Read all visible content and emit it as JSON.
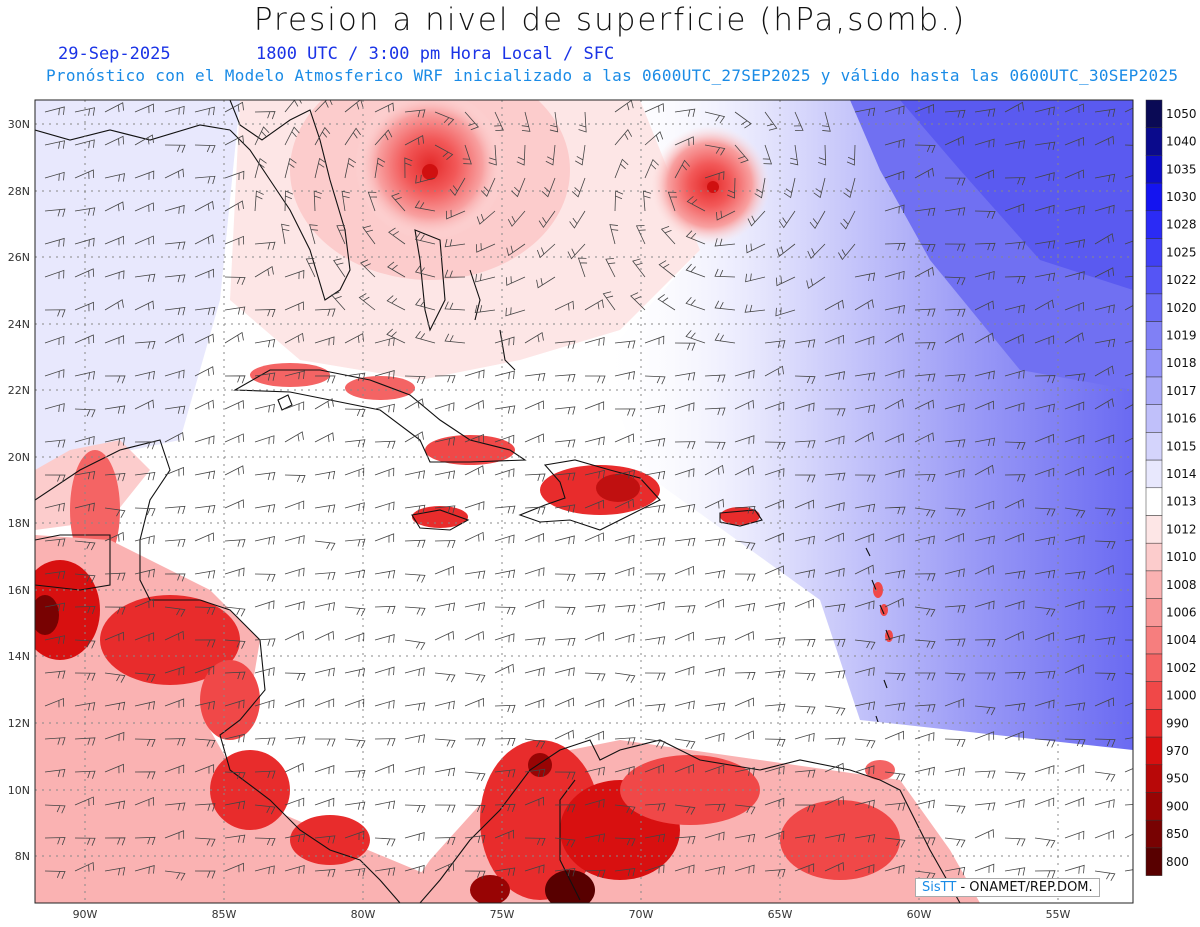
{
  "header": {
    "title": "Presion a nivel de superficie (hPa,somb.)",
    "date": "29-Sep-2025",
    "time": "1800 UTC / 3:00 pm Hora Local / SFC",
    "forecast_info": "Pronóstico con el Modelo Atmosferico WRF inicializado a las 0600UTC_27SEP2025 y válido hasta las  0600UTC_30SEP2025"
  },
  "axes": {
    "lat_labels": [
      "30N",
      "28N",
      "26N",
      "24N",
      "22N",
      "20N",
      "18N",
      "16N",
      "14N",
      "12N",
      "10N",
      "8N"
    ],
    "lon_labels": [
      "90W",
      "85W",
      "80W",
      "75W",
      "70W",
      "65W",
      "60W",
      "55W"
    ]
  },
  "colorbar": {
    "levels": [
      "1050",
      "1040",
      "1035",
      "1030",
      "1028",
      "1025",
      "1022",
      "1020",
      "1019",
      "1018",
      "1017",
      "1016",
      "1015",
      "1014",
      "1013",
      "1012",
      "1010",
      "1008",
      "1006",
      "1004",
      "1002",
      "1000",
      "990",
      "970",
      "950",
      "900",
      "850",
      "800"
    ],
    "colors": [
      "#0a0a55",
      "#0a0a8c",
      "#0c0cc8",
      "#1414f0",
      "#2b2bf5",
      "#4040f5",
      "#5555f5",
      "#6a6af5",
      "#8080f5",
      "#9494f8",
      "#aaaaf8",
      "#c0c0fa",
      "#d4d4fc",
      "#e8e8fd",
      "#ffffff",
      "#fde6e6",
      "#fccccc",
      "#fab2b2",
      "#f89898",
      "#f67e7e",
      "#f46464",
      "#f04848",
      "#e82c2c",
      "#d81010",
      "#b80808",
      "#980404",
      "#780202",
      "#580000"
    ]
  },
  "credit": {
    "brand": "SisTT",
    "text": "- ONAMET/REP.DOM."
  }
}
